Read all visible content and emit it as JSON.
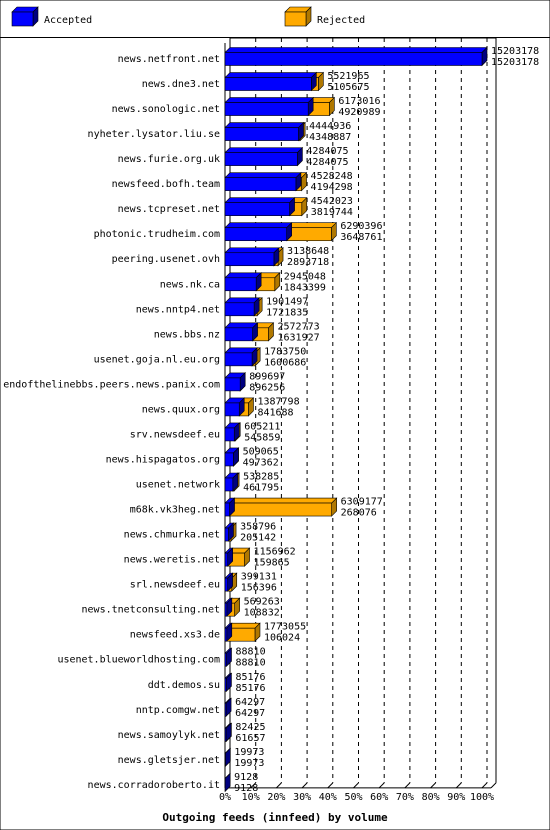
{
  "colors": {
    "accepted_face": "#0000ff",
    "accepted_side": "#000080",
    "rejected_face": "#ffaa00",
    "rejected_side": "#b07800",
    "grid": "#000000",
    "background": "#ffffff"
  },
  "chart_data": {
    "type": "bar",
    "orientation": "horizontal",
    "stacked": true,
    "three_d": true,
    "title": "",
    "xlabel": "Outgoing feeds (innfeed) by volume",
    "ylabel": "",
    "xlim": [
      0,
      100
    ],
    "x_unit": "%",
    "x_ticks": [
      "0%",
      "10%",
      "20%",
      "30%",
      "40%",
      "50%",
      "60%",
      "70%",
      "80%",
      "90%",
      "100%"
    ],
    "legend_position": "top",
    "series": [
      {
        "name": "Accepted",
        "color": "#0000ff"
      },
      {
        "name": "Rejected",
        "color": "#ffaa00"
      }
    ],
    "rows": [
      {
        "label": "news.netfront.net",
        "total": 15203178,
        "accepted": 15203178
      },
      {
        "label": "news.dne3.net",
        "total": 5521965,
        "accepted": 5105675
      },
      {
        "label": "news.sonologic.net",
        "total": 6173016,
        "accepted": 4920989
      },
      {
        "label": "nyheter.lysator.liu.se",
        "total": 4444936,
        "accepted": 4348887
      },
      {
        "label": "news.furie.org.uk",
        "total": 4284075,
        "accepted": 4284075
      },
      {
        "label": "newsfeed.bofh.team",
        "total": 4528248,
        "accepted": 4194298
      },
      {
        "label": "news.tcpreset.net",
        "total": 4542023,
        "accepted": 3819744
      },
      {
        "label": "photonic.trudheim.com",
        "total": 6290396,
        "accepted": 3648761
      },
      {
        "label": "peering.usenet.ovh",
        "total": 3138648,
        "accepted": 2893718
      },
      {
        "label": "news.nk.ca",
        "total": 2945048,
        "accepted": 1843399
      },
      {
        "label": "news.nntp4.net",
        "total": 1901497,
        "accepted": 1721835
      },
      {
        "label": "news.bbs.nz",
        "total": 2572773,
        "accepted": 1631927
      },
      {
        "label": "usenet.goja.nl.eu.org",
        "total": 1783750,
        "accepted": 1600686
      },
      {
        "label": "endofthelinebbs.peers.news.panix.com",
        "total": 899697,
        "accepted": 896256
      },
      {
        "label": "news.quux.org",
        "total": 1387798,
        "accepted": 841688
      },
      {
        "label": "srv.newsdeef.eu",
        "total": 605211,
        "accepted": 545859
      },
      {
        "label": "news.hispagatos.org",
        "total": 509065,
        "accepted": 497362
      },
      {
        "label": "usenet.network",
        "total": 538285,
        "accepted": 461795
      },
      {
        "label": "m68k.vk3heg.net",
        "total": 6309177,
        "accepted": 268076
      },
      {
        "label": "news.chmurka.net",
        "total": 358796,
        "accepted": 205142
      },
      {
        "label": "news.weretis.net",
        "total": 1156962,
        "accepted": 159865
      },
      {
        "label": "srl.newsdeef.eu",
        "total": 399131,
        "accepted": 156396
      },
      {
        "label": "news.tnetconsulting.net",
        "total": 569263,
        "accepted": 108832
      },
      {
        "label": "newsfeed.xs3.de",
        "total": 1773055,
        "accepted": 106024
      },
      {
        "label": "usenet.blueworldhosting.com",
        "total": 88810,
        "accepted": 88810
      },
      {
        "label": "ddt.demos.su",
        "total": 85176,
        "accepted": 85176
      },
      {
        "label": "nntp.comgw.net",
        "total": 64297,
        "accepted": 64297
      },
      {
        "label": "news.samoylyk.net",
        "total": 82425,
        "accepted": 61657
      },
      {
        "label": "news.gletsjer.net",
        "total": 19973,
        "accepted": 19973
      },
      {
        "label": "news.corradoroberto.it",
        "total": 9128,
        "accepted": 9128
      }
    ]
  }
}
